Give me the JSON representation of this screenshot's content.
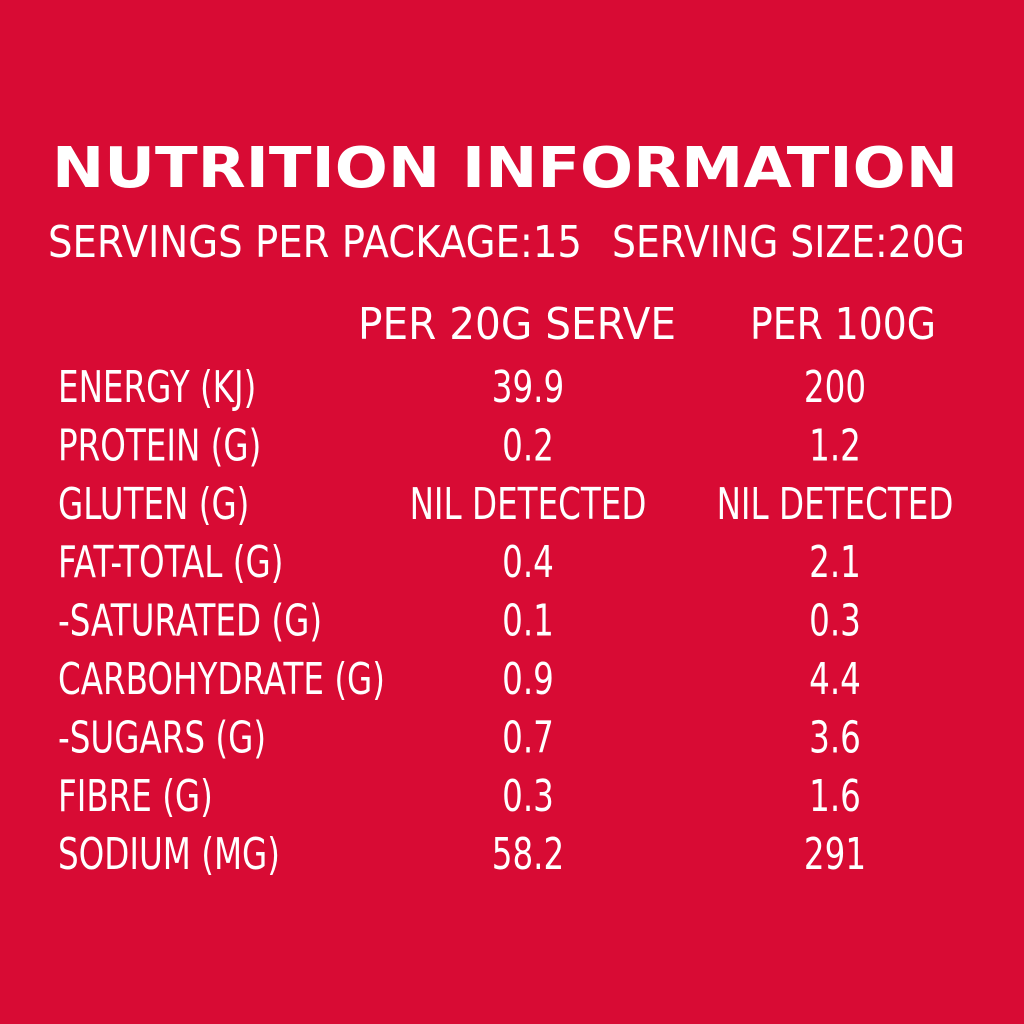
{
  "header": {
    "title": "NUTRITION INFORMATION",
    "servings": "SERVINGS PER PACKAGE:15",
    "serving_size": "SERVING SIZE:20G"
  },
  "table": {
    "columns": [
      "PER 20G SERVE",
      "PER 100G"
    ],
    "rows": [
      [
        "ENERGY (KJ)",
        "39.9",
        "200"
      ],
      [
        "PROTEIN (G)",
        "0.2",
        "1.2"
      ],
      [
        "GLUTEN (G)",
        "NIL DETECTED",
        "NIL DETECTED"
      ],
      [
        "FAT-TOTAL (G)",
        "0.4",
        "2.1"
      ],
      [
        "-SATURATED (G)",
        "0.1",
        "0.3"
      ],
      [
        "CARBOHYDRATE (G)",
        "0.9",
        "4.4"
      ],
      [
        "-SUGARS (G)",
        "0.7",
        "3.6"
      ],
      [
        "FIBRE (G)",
        "0.3",
        "1.6"
      ],
      [
        "SODIUM (MG)",
        "58.2",
        "291"
      ]
    ]
  }
}
